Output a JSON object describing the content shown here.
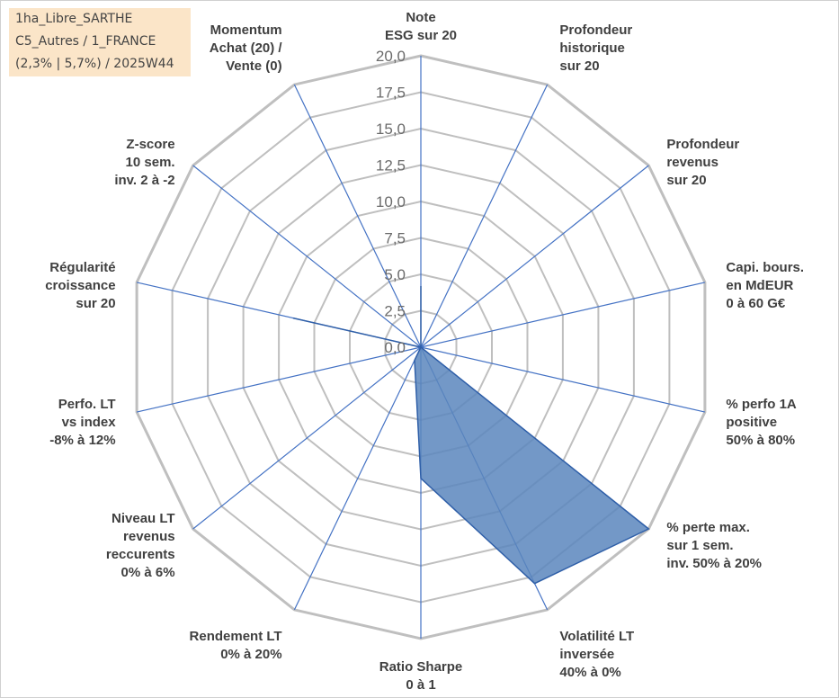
{
  "info_box": {
    "line1": "1ha_Libre_SARTHE",
    "line2": "C5_Autres / 1_FRANCE",
    "line3": "(2,3% | 5,7%) / 2025W44"
  },
  "colors": {
    "fill": "#5b86bd",
    "stroke": "#2f5fa8",
    "grid": "#bfbfbf",
    "spoke": "#4472c4"
  },
  "chart_data": {
    "type": "radar",
    "title": "",
    "rmin": 0,
    "rmax": 20,
    "ticks": [
      "0,0",
      "2,5",
      "5,0",
      "7,5",
      "10,0",
      "12,5",
      "15,0",
      "17,5",
      "20,0"
    ],
    "axes": [
      {
        "label": [
          "Note",
          "ESG sur 20"
        ]
      },
      {
        "label": [
          "Profondeur",
          "historique",
          "sur 20"
        ]
      },
      {
        "label": [
          "Profondeur",
          "revenus",
          "sur 20"
        ]
      },
      {
        "label": [
          "Capi. bours.",
          "en MdEUR",
          "0 à 60 G€"
        ]
      },
      {
        "label": [
          "% perfo 1A",
          "positive",
          "50% à 80%"
        ]
      },
      {
        "label": [
          "% perte max.",
          "sur 1 sem.",
          "inv. 50% à 20%"
        ]
      },
      {
        "label": [
          "Volatilité LT",
          "inversée",
          "40% à 0%"
        ]
      },
      {
        "label": [
          "Ratio Sharpe",
          "0 à 1"
        ]
      },
      {
        "label": [
          "Rendement LT",
          "0% à 20%"
        ]
      },
      {
        "label": [
          "Niveau LT",
          "revenus",
          "reccurents",
          "0% à 6%"
        ]
      },
      {
        "label": [
          "Perfo. LT",
          "vs index",
          "-8% à 12%"
        ]
      },
      {
        "label": [
          "Régularité",
          "croissance",
          "sur 20"
        ]
      },
      {
        "label": [
          "Z-score",
          "10 sem.",
          "inv. 2 à -2"
        ]
      },
      {
        "label": [
          "Momentum",
          "Achat (20) /",
          "Vente (0)"
        ]
      }
    ],
    "series": [
      {
        "name": "1ha_Libre_SARTHE",
        "values": [
          4.2,
          0,
          0,
          0,
          0,
          20,
          18,
          9,
          1,
          0,
          0,
          9,
          0,
          0
        ]
      }
    ]
  }
}
